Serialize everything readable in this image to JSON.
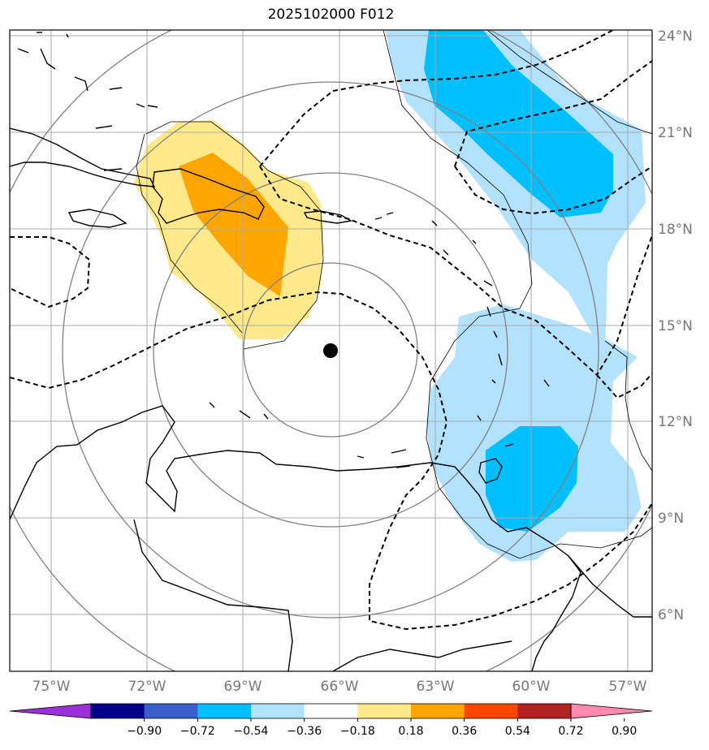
{
  "title": "2025102000 F012",
  "lat_labels": [
    "24°N",
    "21°N",
    "18°N",
    "15°N",
    "12°N",
    "9°N",
    "6°N"
  ],
  "lon_labels": [
    "75°W",
    "72°W",
    "69°W",
    "66°W",
    "63°W",
    "60°W",
    "57°W"
  ],
  "colorbar": {
    "labels": [
      "−0.90",
      "−0.72",
      "−0.54",
      "−0.36",
      "−0.18",
      "0.18",
      "0.36",
      "0.54",
      "0.72",
      "0.90"
    ],
    "colors": [
      "#9b30d8",
      "#00008b",
      "#3a5fcd",
      "#00bfff",
      "#b3e2ff",
      "#ffffff",
      "#ffe98a",
      "#ffa500",
      "#ff4500",
      "#b22222",
      "#ff88b0"
    ]
  },
  "colors": {
    "light_blue": "#b3e2ff",
    "blue": "#00bfff",
    "light_yellow": "#ffe98a",
    "orange": "#ffa500",
    "grid": "#aaaaaa",
    "circle": "#808080"
  }
}
